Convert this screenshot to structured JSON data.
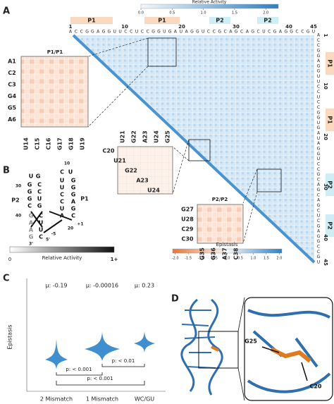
{
  "panel_labels": [
    "A",
    "B",
    "C",
    "D"
  ],
  "panel_a": {
    "activity_colorbar": {
      "title": "Relative Activity",
      "lim": [
        0,
        2.2
      ],
      "ticks": [
        {
          "value": 0,
          "label": "0.0"
        },
        {
          "value": 0.5,
          "label": "0.5"
        },
        {
          "value": 1,
          "label": "1.0"
        },
        {
          "value": 1.5,
          "label": "1.5"
        },
        {
          "value": 2,
          "label": "2.0"
        }
      ]
    },
    "helix_labels": [
      "P1",
      "P1",
      "P2",
      "P2"
    ],
    "position_ticks": [
      "1",
      "10",
      "20",
      "30",
      "40",
      "45"
    ],
    "sequence": [
      "A",
      "C",
      "C",
      "G",
      "G",
      "A",
      "G",
      "G",
      "U",
      "U",
      "C",
      "C",
      "U",
      "C",
      "C",
      "G",
      "G",
      "U",
      "G",
      "A",
      "U",
      "A",
      "G",
      "G",
      "U",
      "C",
      "C",
      "G",
      "C",
      "A",
      "G",
      "C",
      "A",
      "G",
      "C",
      "U",
      "C",
      "G",
      "A",
      "G",
      "G",
      "C",
      "C",
      "G",
      "U"
    ],
    "inset_p1": {
      "title": "P1/P1",
      "rows": [
        "A1",
        "C2",
        "C3",
        "G4",
        "G5",
        "A6"
      ],
      "columns": [
        "U14",
        "C15",
        "C16",
        "G17",
        "G18",
        "U19"
      ]
    },
    "inset_mid": {
      "rows": [
        "C20",
        "U21",
        "G22",
        "A23",
        "U24"
      ],
      "columns": [
        "U21",
        "G22",
        "A23",
        "U24",
        "G25"
      ]
    },
    "inset_p2": {
      "title": "P2/P2",
      "rows": [
        "G27",
        "U28",
        "C29",
        "C30"
      ],
      "columns": [
        "G35",
        "G36",
        "A37",
        "C38"
      ]
    },
    "epistasis_colorbar": {
      "title": "Epistasis",
      "lim": [
        -2.1,
        2.1
      ],
      "ticks": [
        {
          "value": -2,
          "label": "-2.0"
        },
        {
          "value": -1.5,
          "label": "-1.5"
        },
        {
          "value": -1,
          "label": "-1.0"
        },
        {
          "value": -0.5,
          "label": "-0.5"
        },
        {
          "value": 0,
          "label": "0.0"
        },
        {
          "value": 0.5,
          "label": "0.5"
        },
        {
          "value": 1,
          "label": "1.0"
        },
        {
          "value": 1.5,
          "label": "1.5"
        },
        {
          "value": 2,
          "label": "2.0"
        }
      ]
    }
  },
  "panel_b": {
    "helix_labels": [
      "P2",
      "P1"
    ],
    "position_labels": [
      "10",
      "20",
      "30",
      "40",
      "+1",
      "-5",
      "5'",
      "3'"
    ],
    "letters": [
      "U",
      "G",
      "G",
      "G",
      "G",
      "C",
      "C",
      "C",
      "U",
      "G",
      "C",
      "U",
      "U",
      "U",
      "C",
      "C",
      "U",
      "A",
      "G",
      "G",
      "G",
      "A",
      "G",
      "C",
      "G",
      "A",
      "A",
      "G",
      "C",
      "U",
      "U",
      "C"
    ],
    "colorbar": {
      "title": "Relative Activity",
      "ticks": [
        "0",
        "1+"
      ]
    }
  },
  "panel_c": {
    "y_label": "Epistasis",
    "categories": [
      "2 Mismatch",
      "1 Mismatch",
      "WC/GU"
    ],
    "means": [
      "μ: -0.19",
      "μ: -0.00016",
      "μ: 0.23"
    ],
    "p_values": [
      "p: < 0.001",
      "p: < 0.01",
      "p: < 0.001"
    ]
  },
  "panel_d": {
    "labels": [
      "G25",
      "C20"
    ]
  }
}
